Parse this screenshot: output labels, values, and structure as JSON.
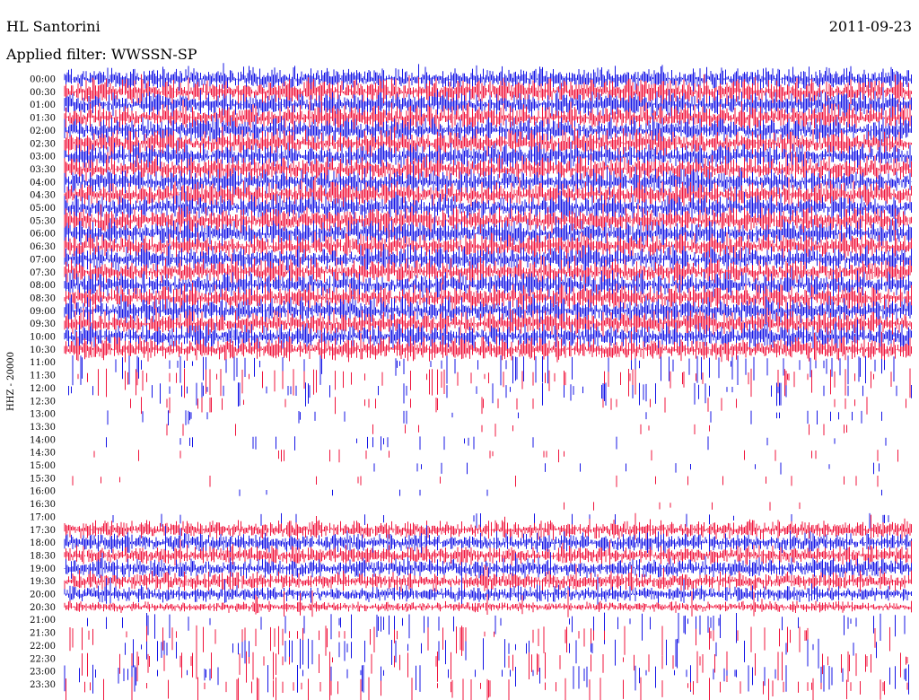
{
  "header": {
    "station": "HL Santorini",
    "date": "2011-09-23",
    "filter": "Applied filter: WWSSN-SP"
  },
  "chart_data": {
    "type": "helicorder",
    "ylabel": "HHZ - 20000",
    "row_labels": [
      "00:00",
      "00:30",
      "01:00",
      "01:30",
      "02:00",
      "02:30",
      "03:00",
      "03:30",
      "04:00",
      "04:30",
      "05:00",
      "05:30",
      "06:00",
      "06:30",
      "07:00",
      "07:30",
      "08:00",
      "08:30",
      "09:00",
      "09:30",
      "10:00",
      "10:30",
      "11:00",
      "11:30",
      "12:00",
      "12:30",
      "13:00",
      "13:30",
      "14:00",
      "14:30",
      "15:00",
      "15:30",
      "16:00",
      "16:30",
      "17:00",
      "17:30",
      "18:00",
      "18:30",
      "19:00",
      "19:30",
      "20:00",
      "20:30",
      "21:00",
      "21:30",
      "22:00",
      "22:30",
      "23:00",
      "23:30"
    ],
    "series_colors": [
      "#1414e6",
      "#f0143c"
    ],
    "color_pattern": "alternating rows: blue, red",
    "activity_by_row": [
      0.85,
      0.95,
      0.95,
      0.95,
      0.95,
      0.95,
      0.95,
      0.95,
      0.95,
      0.95,
      0.95,
      0.95,
      0.95,
      0.95,
      0.95,
      0.95,
      0.95,
      0.95,
      0.95,
      0.95,
      0.95,
      0.85,
      0.3,
      0.28,
      0.22,
      0.15,
      0.12,
      0.1,
      0.12,
      0.1,
      0.08,
      0.08,
      0.05,
      0.06,
      0.12,
      0.7,
      0.7,
      0.7,
      0.7,
      0.7,
      0.6,
      0.4,
      0.3,
      0.3,
      0.3,
      0.3,
      0.3,
      0.3
    ],
    "notes": "Continuous noise 00:00-10:30; sparse spikes 11:00-16:30; trace resumes mid-row 16:30; noise 17:00-23:30 decreasing in amplitude."
  }
}
